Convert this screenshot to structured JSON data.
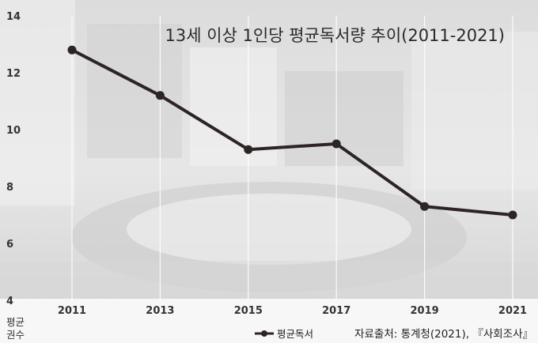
{
  "chart_data": {
    "type": "line",
    "title": "13세 이상 1인당 평균독서량 추이(2011-2021)",
    "ylabel": "평균\n권수",
    "xlabel": "",
    "categories": [
      "2011",
      "2013",
      "2015",
      "2017",
      "2019",
      "2021"
    ],
    "series": [
      {
        "name": "평균독서",
        "values": [
          12.8,
          11.2,
          9.3,
          9.5,
          7.3,
          7.0
        ]
      }
    ],
    "ylim": [
      4,
      14
    ],
    "yticks": [
      4,
      6,
      8,
      10,
      12,
      14
    ],
    "grid": "vertical",
    "legend": "bottom-center",
    "source": "자료출처: 통계청(2021), 『사회조사』",
    "colors": {
      "line": "#2d2424",
      "marker": "#2d2424"
    }
  }
}
